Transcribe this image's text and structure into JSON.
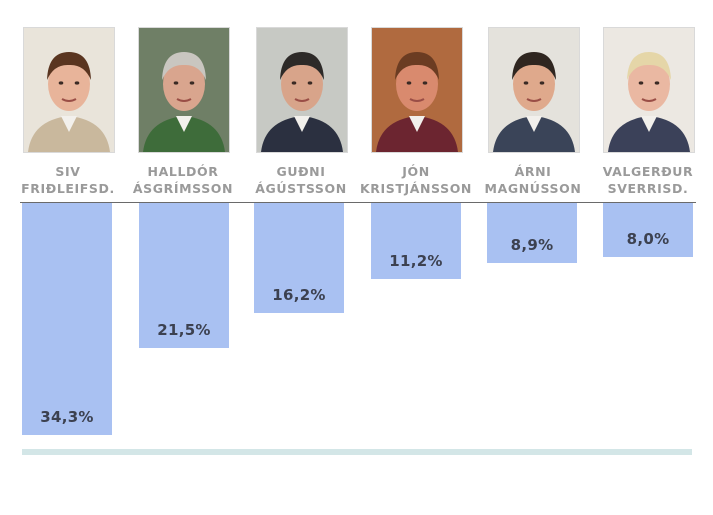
{
  "chart_data": {
    "type": "bar",
    "categories": [
      [
        "SIV",
        "FRIÐLEIFSD."
      ],
      [
        "HALLDÓR",
        "ÁSGRÍMSSON"
      ],
      [
        "GUÐNI",
        "ÁGÚSTSSON"
      ],
      [
        "JÓN",
        "KRISTJÁNSSON"
      ],
      [
        "ÁRNI",
        "MAGNÚSSON"
      ],
      [
        "VALGERÐUR",
        "SVERRISD."
      ]
    ],
    "values": [
      34.3,
      21.5,
      16.2,
      11.2,
      8.9,
      8.0
    ],
    "value_labels": [
      "34,3%",
      "21,5%",
      "16,2%",
      "11,2%",
      "8,9%",
      "8,0%"
    ],
    "orientation": "downward from top axis",
    "ylim": [
      0,
      34.3
    ],
    "grid": false,
    "legend": "none",
    "colors": {
      "bar": "#a9c1f2",
      "name_text": "#9a9a9a",
      "value_text": "#3c4150",
      "axis": "#6a6a6a",
      "bottom_strip": "#d3e6e7"
    }
  },
  "portraits": [
    {
      "hair": "#5a3520",
      "skin": "#e8b49a",
      "clothes": "#c9b89d",
      "bg": "#e9e4da"
    },
    {
      "hair": "#c9c6c0",
      "skin": "#d9a58e",
      "clothes": "#3e6c3a",
      "bg": "#6f7f66"
    },
    {
      "hair": "#2d2a28",
      "skin": "#d8a48a",
      "clothes": "#2b3040",
      "bg": "#c7c9c4"
    },
    {
      "hair": "#6b3c22",
      "skin": "#d98a6e",
      "clothes": "#6c2530",
      "bg": "#b06a3f"
    },
    {
      "hair": "#2f2620",
      "skin": "#dfa98c",
      "clothes": "#3a4458",
      "bg": "#e4e2dc"
    },
    {
      "hair": "#e5d6a8",
      "skin": "#eab8a2",
      "clothes": "#3b4159",
      "bg": "#ece8e2"
    }
  ]
}
